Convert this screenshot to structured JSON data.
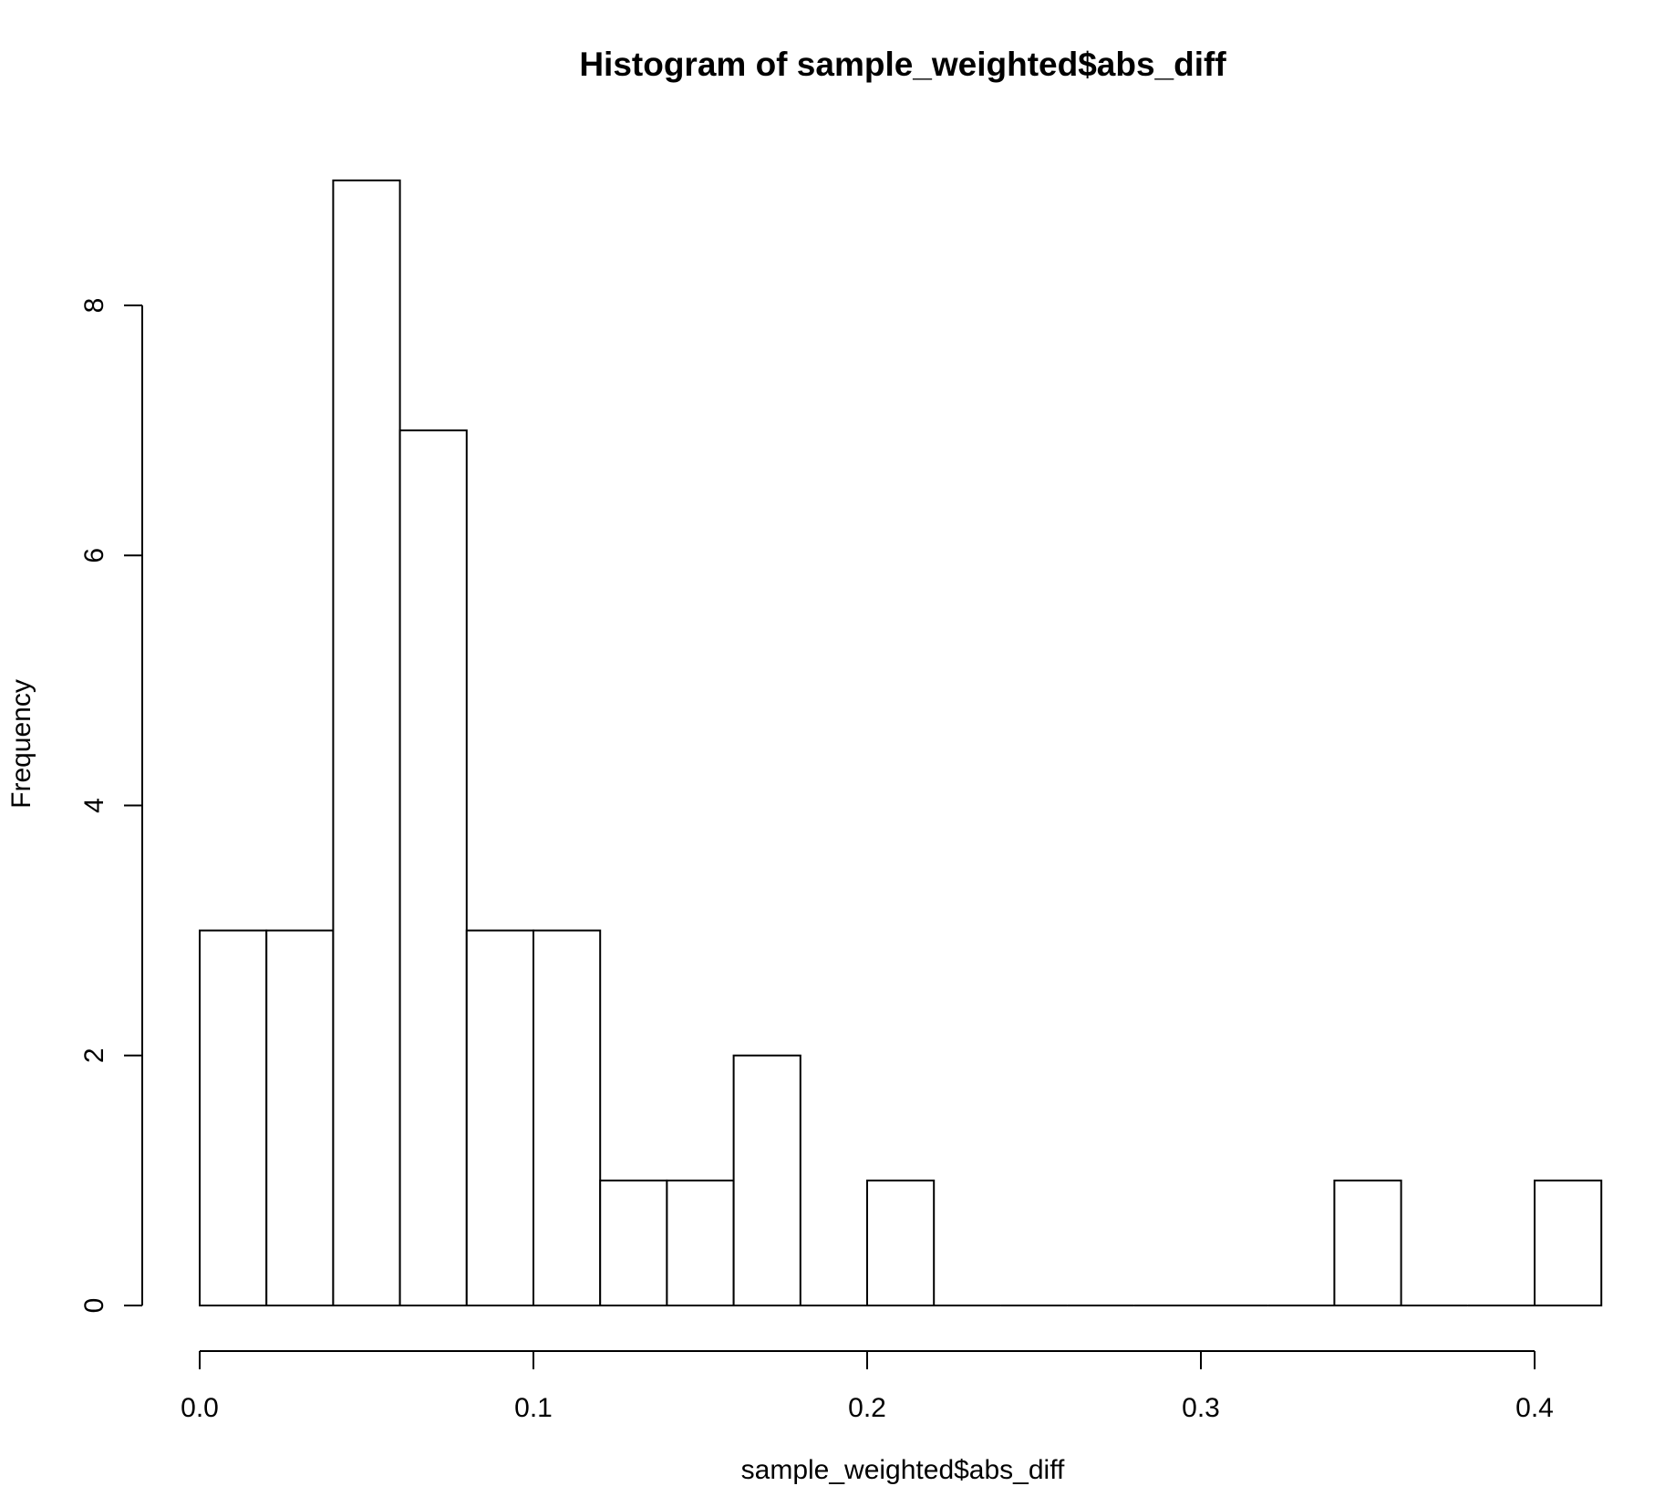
{
  "chart_data": {
    "type": "bar",
    "title": "Histogram of sample_weighted$abs_diff",
    "xlabel": "sample_weighted$abs_diff",
    "ylabel": "Frequency",
    "bin_width": 0.02,
    "bins": [
      {
        "start": 0.0,
        "end": 0.02,
        "count": 3
      },
      {
        "start": 0.02,
        "end": 0.04,
        "count": 3
      },
      {
        "start": 0.04,
        "end": 0.06,
        "count": 9
      },
      {
        "start": 0.06,
        "end": 0.08,
        "count": 7
      },
      {
        "start": 0.08,
        "end": 0.1,
        "count": 3
      },
      {
        "start": 0.1,
        "end": 0.12,
        "count": 3
      },
      {
        "start": 0.12,
        "end": 0.14,
        "count": 1
      },
      {
        "start": 0.14,
        "end": 0.16,
        "count": 1
      },
      {
        "start": 0.16,
        "end": 0.18,
        "count": 2
      },
      {
        "start": 0.18,
        "end": 0.2,
        "count": 0
      },
      {
        "start": 0.2,
        "end": 0.22,
        "count": 1
      },
      {
        "start": 0.22,
        "end": 0.24,
        "count": 0
      },
      {
        "start": 0.24,
        "end": 0.26,
        "count": 0
      },
      {
        "start": 0.26,
        "end": 0.28,
        "count": 0
      },
      {
        "start": 0.28,
        "end": 0.3,
        "count": 0
      },
      {
        "start": 0.3,
        "end": 0.32,
        "count": 0
      },
      {
        "start": 0.32,
        "end": 0.34,
        "count": 0
      },
      {
        "start": 0.34,
        "end": 0.36,
        "count": 1
      },
      {
        "start": 0.36,
        "end": 0.38,
        "count": 0
      },
      {
        "start": 0.38,
        "end": 0.4,
        "count": 0
      },
      {
        "start": 0.4,
        "end": 0.42,
        "count": 1
      }
    ],
    "xticks": [
      {
        "value": 0.0,
        "label": "0.0"
      },
      {
        "value": 0.1,
        "label": "0.1"
      },
      {
        "value": 0.2,
        "label": "0.2"
      },
      {
        "value": 0.3,
        "label": "0.3"
      },
      {
        "value": 0.4,
        "label": "0.4"
      }
    ],
    "yticks": [
      {
        "value": 0,
        "label": "0"
      },
      {
        "value": 2,
        "label": "2"
      },
      {
        "value": 4,
        "label": "4"
      },
      {
        "value": 6,
        "label": "6"
      },
      {
        "value": 8,
        "label": "8"
      }
    ],
    "xlim": [
      0.0,
      0.42
    ],
    "ylim": [
      0,
      9
    ],
    "grid": false,
    "bar_fill": "#ffffff",
    "bar_stroke": "#000000"
  }
}
